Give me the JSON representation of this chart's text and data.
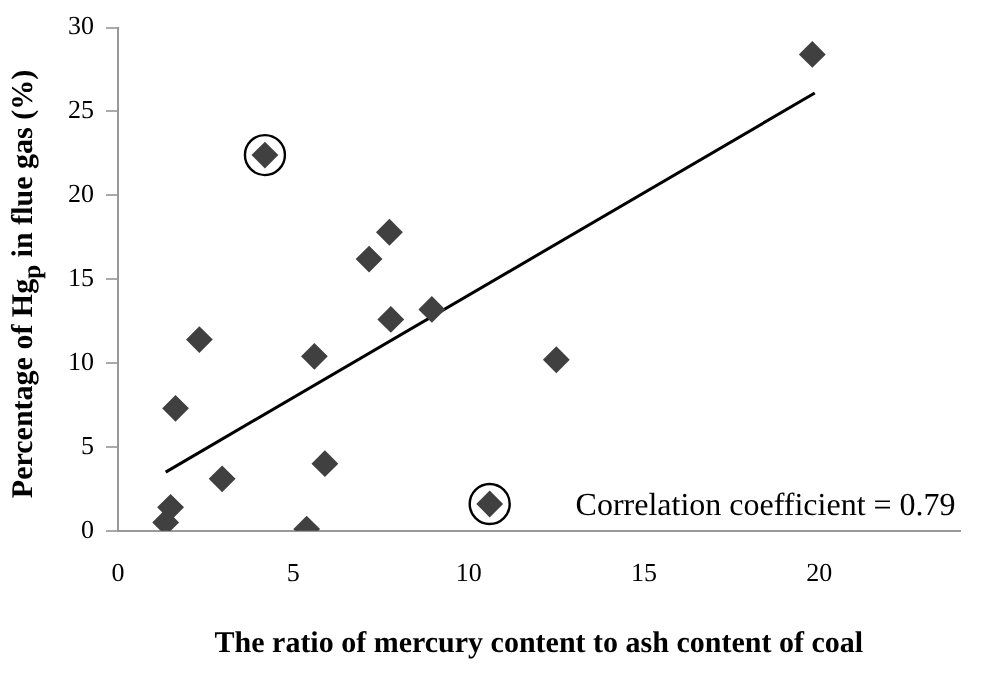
{
  "chart_data": {
    "type": "scatter",
    "xlabel": "The ratio of mercury content to ash content of coal",
    "ylabel": "Percentage of Hg$_{p}$ in flue gas (%)",
    "xlim": [
      0,
      24
    ],
    "xticks": [
      0,
      5,
      10,
      15,
      20
    ],
    "ylim": [
      0,
      30
    ],
    "yticks": [
      0,
      5,
      10,
      15,
      20,
      25,
      30
    ],
    "grid": false,
    "legend": false,
    "series": [
      {
        "type": "scatter",
        "marker": "diamond",
        "color": "#404040",
        "x": [
          1.36,
          1.5,
          1.64,
          2.32,
          2.97,
          4.19,
          5.38,
          5.6,
          5.9,
          7.16,
          7.74,
          7.78,
          8.95,
          10.6,
          12.5,
          19.8
        ],
        "values": [
          0.5,
          1.4,
          7.3,
          11.4,
          3.1,
          22.4,
          0.1,
          10.4,
          4.0,
          16.2,
          17.8,
          12.6,
          13.2,
          1.6,
          10.2,
          28.4
        ]
      },
      {
        "type": "scatter",
        "marker": "circle",
        "color": "#000000",
        "x": [
          4.19,
          10.6
        ],
        "values": [
          22.4,
          1.6
        ]
      },
      {
        "type": "line",
        "marker": "none",
        "color": "#000000",
        "x": [
          1.36,
          19.87
        ],
        "values": [
          3.5,
          26.1
        ]
      }
    ],
    "annotations": [
      "Correlation coefficient = 0.79"
    ]
  }
}
